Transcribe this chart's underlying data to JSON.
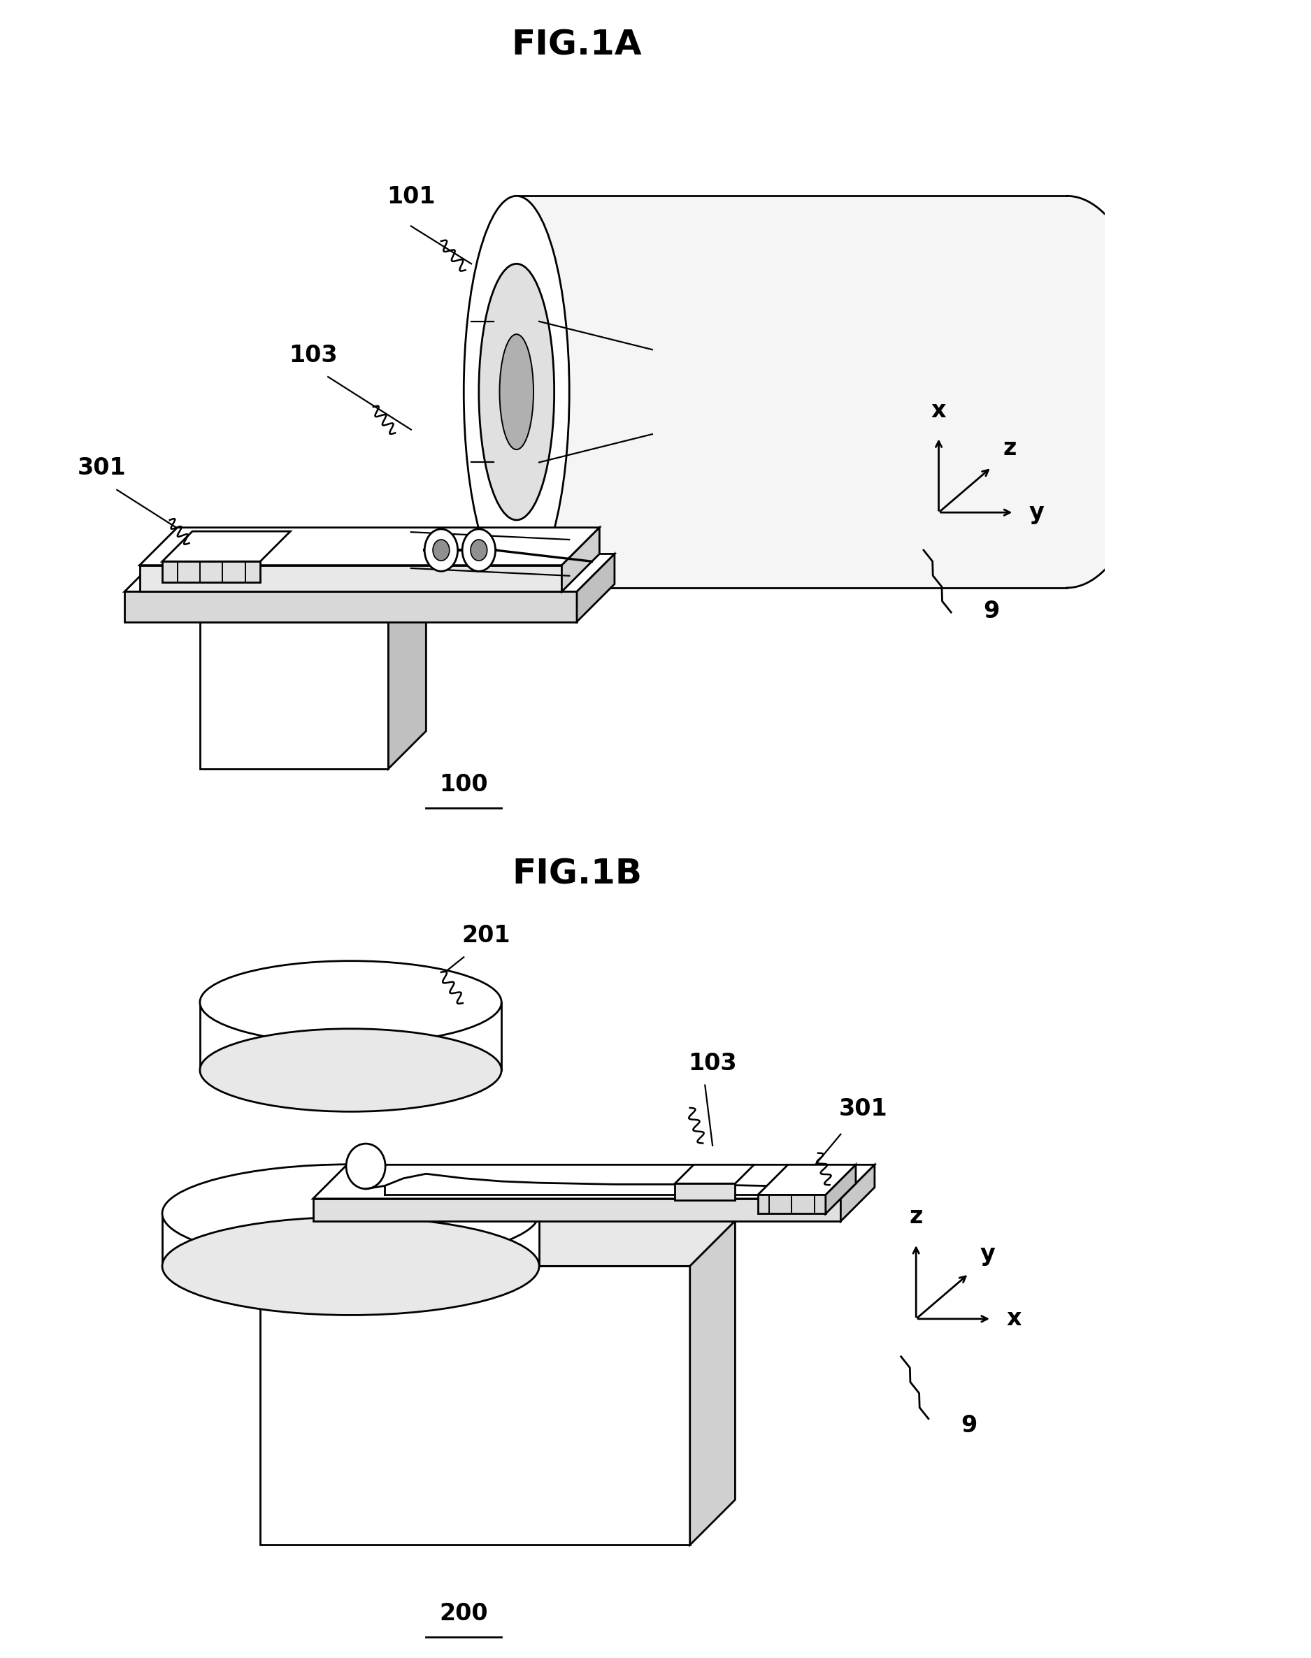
{
  "fig_title_A": "FIG.1A",
  "fig_title_B": "FIG.1B",
  "label_100": "100",
  "label_200": "200",
  "label_101": "101",
  "label_103_A": "103",
  "label_201": "201",
  "label_301_A": "301",
  "label_301_B": "301",
  "label_103_B": "103",
  "label_9": "9",
  "bg_color": "#ffffff",
  "line_color": "#000000",
  "font_size_title": 36,
  "font_size_label": 24,
  "lw": 2.0
}
